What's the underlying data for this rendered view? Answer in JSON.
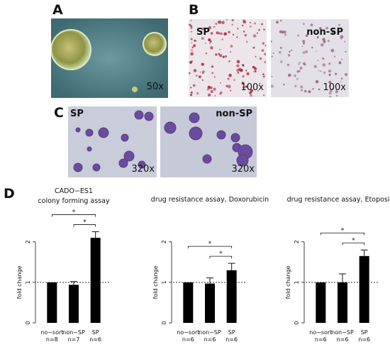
{
  "panels": {
    "A": {
      "letter": "A",
      "magnification": "50x"
    },
    "B": {
      "letter": "B",
      "left_label": "SP",
      "right_label": "non-SP",
      "left_magnification": "100x",
      "right_magnification": "100x"
    },
    "C": {
      "letter": "C",
      "left_label": "SP",
      "right_label": "non-SP",
      "left_magnification": "320x",
      "right_magnification": "320x"
    },
    "D": {
      "letter": "D"
    }
  },
  "colors": {
    "bar": "#000000",
    "phase_bg": "#4c7a80",
    "colony": "#a9ad55",
    "stain_bg": "#e8e2e6",
    "stain_dot": "#b0304a",
    "cyto_bg": "#c8ccda",
    "cyto_cell": "#6a4a9a"
  },
  "chart_data": [
    {
      "type": "bar",
      "title_lines": [
        "CADO−ES1",
        "colony forming assay"
      ],
      "ylabel": "fold change",
      "ylim": [
        0,
        2.4
      ],
      "yticks": [
        0,
        1,
        2
      ],
      "categories": [
        "no−sort",
        "non−SP",
        "SP"
      ],
      "n_labels": [
        "n=8",
        "n=7",
        "n=6"
      ],
      "values": [
        1.0,
        0.94,
        2.1
      ],
      "errors": [
        0,
        0.08,
        0.15
      ],
      "reference_line": 1,
      "significance": [
        {
          "from": 0,
          "to": 2,
          "label": "*"
        },
        {
          "from": 1,
          "to": 2,
          "label": "*"
        }
      ]
    },
    {
      "type": "bar",
      "title_lines": [
        "drug resistance assay, Doxorubicin"
      ],
      "ylabel": "fold change",
      "ylim": [
        0,
        2.4
      ],
      "yticks": [
        0,
        1,
        2
      ],
      "categories": [
        "no−sort",
        "non−SP",
        "SP"
      ],
      "n_labels": [
        "n=6",
        "n=6",
        "n=6"
      ],
      "values": [
        1.0,
        0.97,
        1.3
      ],
      "errors": [
        0,
        0.14,
        0.17
      ],
      "reference_line": 1,
      "significance": [
        {
          "from": 0,
          "to": 2,
          "label": "*"
        },
        {
          "from": 1,
          "to": 2,
          "label": "*"
        }
      ]
    },
    {
      "type": "bar",
      "title_lines": [
        "drug resistance assay, Etoposide"
      ],
      "ylabel": "fold change",
      "ylim": [
        0,
        2.4
      ],
      "yticks": [
        0,
        1,
        2
      ],
      "categories": [
        "no−sort",
        "non−SP",
        "SP"
      ],
      "n_labels": [
        "n=6",
        "n=6",
        "n=6"
      ],
      "values": [
        1.0,
        1.0,
        1.65
      ],
      "errors": [
        0,
        0.21,
        0.15
      ],
      "reference_line": 1,
      "significance": [
        {
          "from": 0,
          "to": 2,
          "label": "*"
        },
        {
          "from": 1,
          "to": 2,
          "label": "*"
        }
      ]
    }
  ]
}
